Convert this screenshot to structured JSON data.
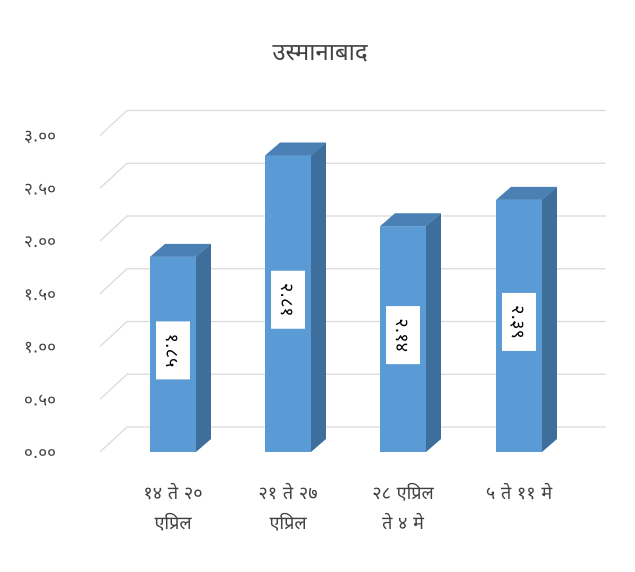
{
  "chart_data": {
    "type": "bar",
    "title": "उस्मानाबाद",
    "xlabel": "",
    "ylabel": "",
    "categories": [
      [
        "१४ ते २०",
        "एप्रिल"
      ],
      [
        "२१ ते २७",
        "एप्रिल"
      ],
      [
        "२८ एप्रिल",
        "ते ४ मे"
      ],
      [
        "५ ते ११ मे"
      ]
    ],
    "values": [
      1.85,
      2.81,
      2.14,
      2.39
    ],
    "data_labels": [
      "१.८५",
      "२.८१",
      "२.१४",
      "२.३९"
    ],
    "ylim": [
      0,
      3.0
    ],
    "yticks": [
      0,
      0.5,
      1.0,
      1.5,
      2.0,
      2.5,
      3.0
    ],
    "ytick_labels": [
      "०.००",
      "०.५०",
      "१.००",
      "१.५०",
      "२.००",
      "२.५०",
      "३.००"
    ],
    "grid": true,
    "legend": "none",
    "style_3d": true,
    "colors": {
      "bar_front": "#5b9bd5",
      "bar_side": "#3d6e9c",
      "bar_top": "#4a80b3",
      "grid": "#d9d9d9",
      "text": "#404040"
    }
  }
}
